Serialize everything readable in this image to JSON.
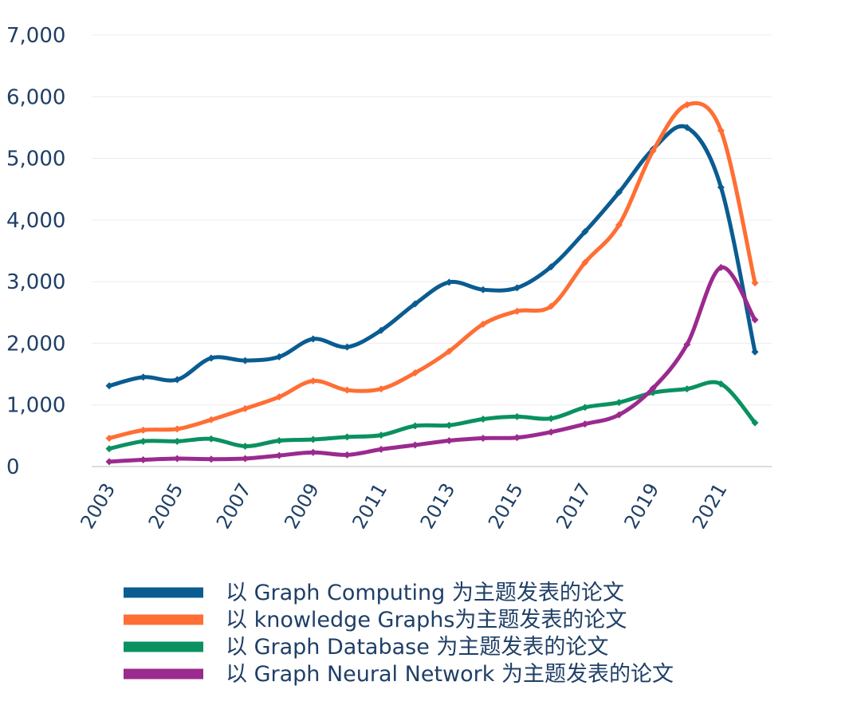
{
  "chart_data": {
    "type": "line",
    "title": "",
    "xlabel": "",
    "ylabel": "",
    "x": [
      2003,
      2004,
      2005,
      2006,
      2007,
      2008,
      2009,
      2010,
      2011,
      2012,
      2013,
      2014,
      2015,
      2016,
      2017,
      2018,
      2019,
      2020,
      2021,
      2022
    ],
    "x_tick_labels": [
      "2003",
      "2005",
      "2007",
      "2009",
      "2011",
      "2013",
      "2015",
      "2017",
      "2019",
      "2021"
    ],
    "y_tick_labels": [
      "0",
      "1,000",
      "2,000",
      "3,000",
      "4,000",
      "5,000",
      "6,000",
      "7,000"
    ],
    "ylim": [
      0,
      7000
    ],
    "grid": true,
    "legend_position": "bottom",
    "series": [
      {
        "name": "以 Graph Computing 为主题发表的论文",
        "color": "#0a5c91",
        "values": [
          1310,
          1450,
          1410,
          1760,
          1720,
          1780,
          2070,
          1940,
          2210,
          2640,
          2990,
          2870,
          2900,
          3240,
          3810,
          4450,
          5150,
          5500,
          4530,
          1860
        ]
      },
      {
        "name": "以 knowledge Graphs为主题发表的论文",
        "color": "#ff6e34",
        "values": [
          460,
          590,
          610,
          760,
          940,
          1130,
          1390,
          1240,
          1260,
          1520,
          1870,
          2310,
          2520,
          2600,
          3310,
          3920,
          5120,
          5870,
          5450,
          2980
        ]
      },
      {
        "name": "以 Graph Database 为主题发表的论文",
        "color": "#0a9160",
        "values": [
          290,
          410,
          410,
          450,
          330,
          420,
          440,
          480,
          510,
          660,
          670,
          770,
          810,
          780,
          960,
          1040,
          1200,
          1260,
          1340,
          710
        ]
      },
      {
        "name": "以 Graph Neural Network 为主题发表的论文",
        "color": "#9b2a8e",
        "values": [
          80,
          110,
          130,
          120,
          130,
          180,
          230,
          190,
          280,
          350,
          420,
          460,
          470,
          560,
          690,
          840,
          1270,
          1980,
          3230,
          2380
        ]
      }
    ]
  }
}
